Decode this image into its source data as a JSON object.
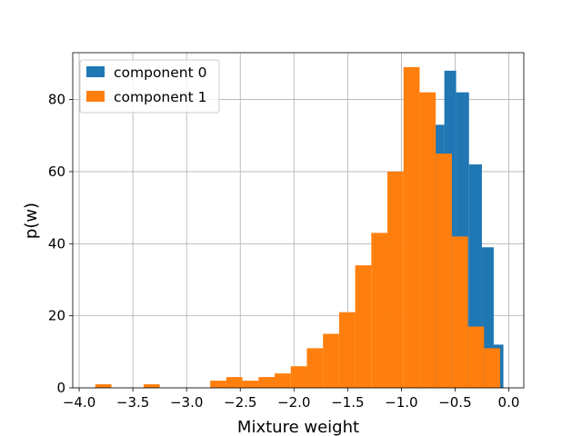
{
  "chart_data": {
    "type": "bar",
    "subtype": "histogram",
    "xlabel": "Mixture weight",
    "ylabel": "p(w)",
    "xlim": [
      -4.06,
      0.14
    ],
    "ylim": [
      0,
      93
    ],
    "xticks": [
      -4.0,
      -3.5,
      -3.0,
      -2.5,
      -2.0,
      -1.5,
      -1.0,
      -0.5,
      0.0
    ],
    "xtick_labels": [
      "−4.0",
      "−3.5",
      "−3.0",
      "−2.5",
      "−2.0",
      "−1.5",
      "−1.0",
      "−0.5",
      "0.0"
    ],
    "yticks": [
      0,
      20,
      40,
      60,
      80
    ],
    "ytick_labels": [
      "0",
      "20",
      "40",
      "60",
      "80"
    ],
    "grid": true,
    "legend_position": "upper-left",
    "series": [
      {
        "name": "component 0",
        "color": "#1f77b4",
        "bins": [
          {
            "x0": -0.72,
            "x1": -0.6,
            "value": 73
          },
          {
            "x0": -0.6,
            "x1": -0.49,
            "value": 88
          },
          {
            "x0": -0.49,
            "x1": -0.37,
            "value": 82
          },
          {
            "x0": -0.37,
            "x1": -0.25,
            "value": 62
          },
          {
            "x0": -0.25,
            "x1": -0.14,
            "value": 39
          },
          {
            "x0": -0.14,
            "x1": -0.05,
            "value": 12
          }
        ]
      },
      {
        "name": "component 1",
        "color": "#ff7f0e",
        "bins": [
          {
            "x0": -3.85,
            "x1": -3.7,
            "value": 1
          },
          {
            "x0": -3.4,
            "x1": -3.25,
            "value": 1
          },
          {
            "x0": -2.78,
            "x1": -2.63,
            "value": 2
          },
          {
            "x0": -2.63,
            "x1": -2.48,
            "value": 3
          },
          {
            "x0": -2.48,
            "x1": -2.33,
            "value": 2
          },
          {
            "x0": -2.33,
            "x1": -2.18,
            "value": 3
          },
          {
            "x0": -2.18,
            "x1": -2.03,
            "value": 4
          },
          {
            "x0": -2.03,
            "x1": -1.88,
            "value": 6
          },
          {
            "x0": -1.88,
            "x1": -1.73,
            "value": 11
          },
          {
            "x0": -1.73,
            "x1": -1.58,
            "value": 15
          },
          {
            "x0": -1.58,
            "x1": -1.43,
            "value": 21
          },
          {
            "x0": -1.43,
            "x1": -1.28,
            "value": 34
          },
          {
            "x0": -1.28,
            "x1": -1.13,
            "value": 43
          },
          {
            "x0": -1.13,
            "x1": -0.98,
            "value": 60
          },
          {
            "x0": -0.98,
            "x1": -0.83,
            "value": 89
          },
          {
            "x0": -0.83,
            "x1": -0.68,
            "value": 82
          },
          {
            "x0": -0.68,
            "x1": -0.53,
            "value": 65
          },
          {
            "x0": -0.53,
            "x1": -0.38,
            "value": 42
          },
          {
            "x0": -0.38,
            "x1": -0.23,
            "value": 17
          },
          {
            "x0": -0.23,
            "x1": -0.08,
            "value": 11
          }
        ]
      }
    ]
  }
}
